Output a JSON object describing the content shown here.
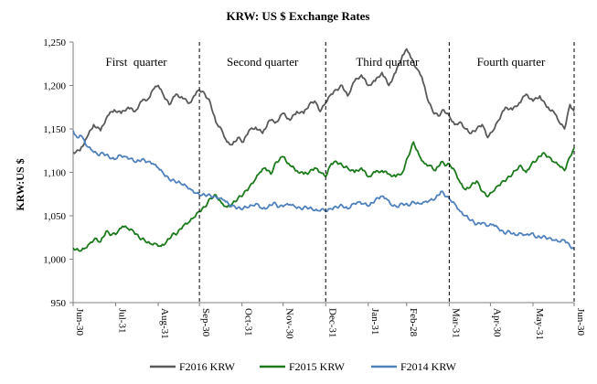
{
  "chart_data": {
    "type": "line",
    "title": "KRW: US $ Exchange Rates",
    "ylabel": "KRW:US $",
    "xlabel": "",
    "ylim": [
      950,
      1250
    ],
    "yticks": [
      950,
      1000,
      1050,
      1100,
      1150,
      1200,
      1250
    ],
    "ytick_labels": [
      "950",
      "1,000",
      "1,050",
      "1,100",
      "1,150",
      "1,200",
      "1,250"
    ],
    "x_range": [
      0,
      365
    ],
    "x_ticks": [
      {
        "label": "Jun-30",
        "day": 0
      },
      {
        "label": "Jul-31",
        "day": 31
      },
      {
        "label": "Aug-31",
        "day": 62
      },
      {
        "label": "Sep-30",
        "day": 92
      },
      {
        "label": "Oct-31",
        "day": 123
      },
      {
        "label": "Nov-30",
        "day": 153
      },
      {
        "label": "Dec-31",
        "day": 184
      },
      {
        "label": "Jan-31",
        "day": 215
      },
      {
        "label": "Feb-28",
        "day": 243
      },
      {
        "label": "Mar-31",
        "day": 274
      },
      {
        "label": "Apr-30",
        "day": 304
      },
      {
        "label": "May-31",
        "day": 335
      },
      {
        "label": "Jun-30",
        "day": 365
      }
    ],
    "quarter_dividers": [
      92,
      184,
      274,
      365
    ],
    "quarters": [
      {
        "label": "First  quarter",
        "day": 46
      },
      {
        "label": "Second quarter",
        "day": 138
      },
      {
        "label": "Third quarter",
        "day": 229
      },
      {
        "label": "Fourth quarter",
        "day": 319
      }
    ],
    "legend_position": "bottom",
    "series": [
      {
        "name": "F2016 KRW",
        "color": "#595959",
        "points": [
          [
            0,
            1123
          ],
          [
            5,
            1125
          ],
          [
            10,
            1140
          ],
          [
            15,
            1155
          ],
          [
            20,
            1148
          ],
          [
            25,
            1165
          ],
          [
            30,
            1172
          ],
          [
            35,
            1168
          ],
          [
            40,
            1175
          ],
          [
            45,
            1170
          ],
          [
            50,
            1182
          ],
          [
            55,
            1185
          ],
          [
            58,
            1195
          ],
          [
            62,
            1200
          ],
          [
            66,
            1188
          ],
          [
            70,
            1178
          ],
          [
            75,
            1190
          ],
          [
            80,
            1185
          ],
          [
            85,
            1180
          ],
          [
            88,
            1188
          ],
          [
            92,
            1195
          ],
          [
            96,
            1190
          ],
          [
            100,
            1180
          ],
          [
            104,
            1158
          ],
          [
            108,
            1150
          ],
          [
            112,
            1135
          ],
          [
            116,
            1132
          ],
          [
            120,
            1140
          ],
          [
            124,
            1135
          ],
          [
            128,
            1148
          ],
          [
            133,
            1152
          ],
          [
            138,
            1145
          ],
          [
            143,
            1160
          ],
          [
            148,
            1158
          ],
          [
            153,
            1168
          ],
          [
            158,
            1160
          ],
          [
            163,
            1170
          ],
          [
            168,
            1168
          ],
          [
            172,
            1178
          ],
          [
            176,
            1182
          ],
          [
            180,
            1170
          ],
          [
            184,
            1180
          ],
          [
            188,
            1190
          ],
          [
            192,
            1195
          ],
          [
            196,
            1200
          ],
          [
            200,
            1188
          ],
          [
            205,
            1205
          ],
          [
            210,
            1212
          ],
          [
            215,
            1200
          ],
          [
            220,
            1205
          ],
          [
            225,
            1215
          ],
          [
            230,
            1200
          ],
          [
            235,
            1215
          ],
          [
            240,
            1235
          ],
          [
            243,
            1242
          ],
          [
            246,
            1232
          ],
          [
            250,
            1220
          ],
          [
            254,
            1210
          ],
          [
            258,
            1185
          ],
          [
            262,
            1170
          ],
          [
            266,
            1165
          ],
          [
            270,
            1172
          ],
          [
            274,
            1165
          ],
          [
            278,
            1155
          ],
          [
            282,
            1158
          ],
          [
            286,
            1150
          ],
          [
            290,
            1145
          ],
          [
            294,
            1150
          ],
          [
            298,
            1155
          ],
          [
            302,
            1140
          ],
          [
            306,
            1148
          ],
          [
            310,
            1160
          ],
          [
            315,
            1175
          ],
          [
            320,
            1172
          ],
          [
            325,
            1180
          ],
          [
            330,
            1190
          ],
          [
            335,
            1182
          ],
          [
            340,
            1188
          ],
          [
            345,
            1175
          ],
          [
            350,
            1170
          ],
          [
            354,
            1158
          ],
          [
            358,
            1150
          ],
          [
            362,
            1178
          ],
          [
            365,
            1170
          ]
        ]
      },
      {
        "name": "F2015 KRW",
        "color": "#1b7a1b",
        "points": [
          [
            0,
            1013
          ],
          [
            4,
            1010
          ],
          [
            8,
            1012
          ],
          [
            12,
            1018
          ],
          [
            16,
            1024
          ],
          [
            20,
            1020
          ],
          [
            24,
            1032
          ],
          [
            28,
            1028
          ],
          [
            32,
            1030
          ],
          [
            36,
            1038
          ],
          [
            40,
            1035
          ],
          [
            44,
            1032
          ],
          [
            48,
            1025
          ],
          [
            52,
            1022
          ],
          [
            56,
            1018
          ],
          [
            60,
            1018
          ],
          [
            64,
            1015
          ],
          [
            68,
            1020
          ],
          [
            72,
            1028
          ],
          [
            76,
            1030
          ],
          [
            80,
            1038
          ],
          [
            84,
            1042
          ],
          [
            88,
            1048
          ],
          [
            92,
            1055
          ],
          [
            96,
            1060
          ],
          [
            100,
            1070
          ],
          [
            104,
            1074
          ],
          [
            108,
            1065
          ],
          [
            112,
            1060
          ],
          [
            116,
            1064
          ],
          [
            120,
            1070
          ],
          [
            124,
            1075
          ],
          [
            128,
            1082
          ],
          [
            132,
            1090
          ],
          [
            136,
            1100
          ],
          [
            140,
            1105
          ],
          [
            144,
            1098
          ],
          [
            148,
            1112
          ],
          [
            153,
            1118
          ],
          [
            158,
            1108
          ],
          [
            163,
            1102
          ],
          [
            168,
            1098
          ],
          [
            172,
            1100
          ],
          [
            176,
            1105
          ],
          [
            180,
            1100
          ],
          [
            184,
            1095
          ],
          [
            188,
            1110
          ],
          [
            192,
            1112
          ],
          [
            196,
            1108
          ],
          [
            200,
            1105
          ],
          [
            205,
            1100
          ],
          [
            210,
            1105
          ],
          [
            215,
            1095
          ],
          [
            220,
            1100
          ],
          [
            225,
            1102
          ],
          [
            230,
            1098
          ],
          [
            235,
            1095
          ],
          [
            240,
            1100
          ],
          [
            244,
            1118
          ],
          [
            248,
            1135
          ],
          [
            252,
            1120
          ],
          [
            256,
            1110
          ],
          [
            260,
            1108
          ],
          [
            264,
            1102
          ],
          [
            268,
            1112
          ],
          [
            272,
            1108
          ],
          [
            274,
            1110
          ],
          [
            278,
            1102
          ],
          [
            282,
            1088
          ],
          [
            286,
            1080
          ],
          [
            290,
            1085
          ],
          [
            294,
            1090
          ],
          [
            298,
            1078
          ],
          [
            302,
            1072
          ],
          [
            306,
            1078
          ],
          [
            310,
            1085
          ],
          [
            314,
            1090
          ],
          [
            318,
            1095
          ],
          [
            322,
            1102
          ],
          [
            326,
            1108
          ],
          [
            330,
            1100
          ],
          [
            334,
            1110
          ],
          [
            338,
            1115
          ],
          [
            342,
            1122
          ],
          [
            346,
            1118
          ],
          [
            350,
            1112
          ],
          [
            354,
            1108
          ],
          [
            358,
            1102
          ],
          [
            362,
            1118
          ],
          [
            365,
            1128
          ]
        ]
      },
      {
        "name": "F2014 KRW",
        "color": "#4f81bd",
        "points": [
          [
            0,
            1148
          ],
          [
            3,
            1140
          ],
          [
            6,
            1142
          ],
          [
            10,
            1130
          ],
          [
            14,
            1125
          ],
          [
            18,
            1120
          ],
          [
            22,
            1122
          ],
          [
            26,
            1118
          ],
          [
            30,
            1115
          ],
          [
            34,
            1120
          ],
          [
            38,
            1118
          ],
          [
            42,
            1116
          ],
          [
            46,
            1112
          ],
          [
            50,
            1115
          ],
          [
            54,
            1112
          ],
          [
            58,
            1110
          ],
          [
            62,
            1105
          ],
          [
            66,
            1098
          ],
          [
            70,
            1092
          ],
          [
            74,
            1090
          ],
          [
            78,
            1088
          ],
          [
            82,
            1085
          ],
          [
            86,
            1080
          ],
          [
            90,
            1076
          ],
          [
            94,
            1074
          ],
          [
            98,
            1074
          ],
          [
            102,
            1072
          ],
          [
            106,
            1070
          ],
          [
            110,
            1068
          ],
          [
            114,
            1062
          ],
          [
            118,
            1060
          ],
          [
            122,
            1058
          ],
          [
            126,
            1060
          ],
          [
            130,
            1062
          ],
          [
            134,
            1064
          ],
          [
            138,
            1058
          ],
          [
            142,
            1060
          ],
          [
            146,
            1065
          ],
          [
            150,
            1060
          ],
          [
            154,
            1062
          ],
          [
            158,
            1063
          ],
          [
            162,
            1060
          ],
          [
            166,
            1058
          ],
          [
            170,
            1060
          ],
          [
            174,
            1058
          ],
          [
            178,
            1056
          ],
          [
            182,
            1058
          ],
          [
            184,
            1055
          ],
          [
            188,
            1058
          ],
          [
            192,
            1060
          ],
          [
            196,
            1062
          ],
          [
            200,
            1058
          ],
          [
            204,
            1064
          ],
          [
            208,
            1066
          ],
          [
            212,
            1064
          ],
          [
            216,
            1062
          ],
          [
            220,
            1068
          ],
          [
            224,
            1072
          ],
          [
            228,
            1070
          ],
          [
            232,
            1062
          ],
          [
            236,
            1060
          ],
          [
            240,
            1064
          ],
          [
            244,
            1062
          ],
          [
            248,
            1066
          ],
          [
            252,
            1064
          ],
          [
            256,
            1066
          ],
          [
            260,
            1068
          ],
          [
            264,
            1070
          ],
          [
            268,
            1078
          ],
          [
            272,
            1072
          ],
          [
            274,
            1070
          ],
          [
            278,
            1064
          ],
          [
            282,
            1055
          ],
          [
            286,
            1050
          ],
          [
            290,
            1045
          ],
          [
            294,
            1040
          ],
          [
            298,
            1042
          ],
          [
            302,
            1038
          ],
          [
            306,
            1040
          ],
          [
            310,
            1035
          ],
          [
            314,
            1030
          ],
          [
            318,
            1032
          ],
          [
            322,
            1028
          ],
          [
            326,
            1030
          ],
          [
            330,
            1028
          ],
          [
            334,
            1030
          ],
          [
            338,
            1025
          ],
          [
            342,
            1026
          ],
          [
            346,
            1024
          ],
          [
            350,
            1022
          ],
          [
            354,
            1020
          ],
          [
            358,
            1022
          ],
          [
            362,
            1015
          ],
          [
            365,
            1012
          ]
        ]
      }
    ]
  }
}
